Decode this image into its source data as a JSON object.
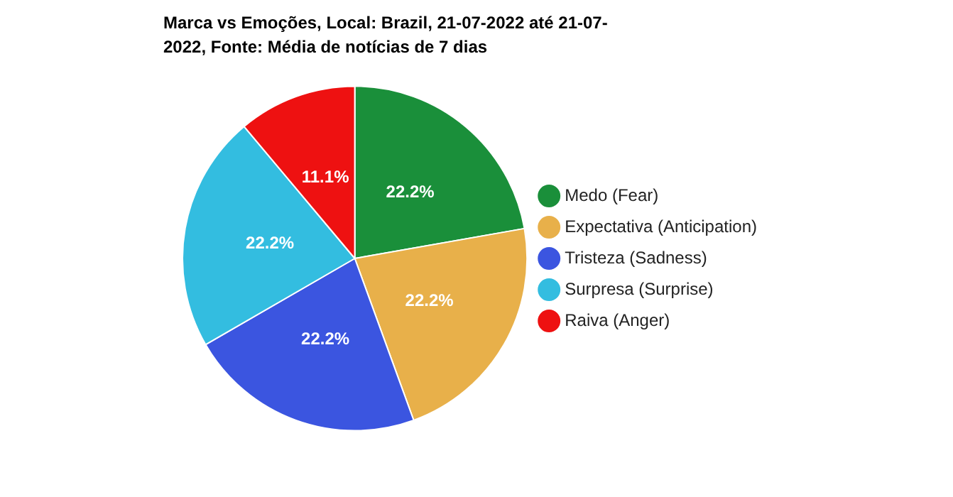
{
  "chart_data": {
    "type": "pie",
    "title": "Marca vs Emoções, Local: Brazil, 21-07-2022 até 21-07-2022, Fonte: Média de notícias de 7 dias",
    "categories": [
      "Medo (Fear)",
      "Expectativa (Anticipation)",
      "Tristeza (Sadness)",
      "Surpresa (Surprise)",
      "Raiva (Anger)"
    ],
    "values": [
      22.2,
      22.2,
      22.2,
      22.2,
      11.1
    ],
    "value_labels": [
      "22.2%",
      "22.2%",
      "22.2%",
      "22.2%",
      "11.1%"
    ],
    "colors": [
      "#1a8f3a",
      "#e8b04a",
      "#3b55e0",
      "#33bde0",
      "#ee1111"
    ],
    "legend": "right"
  }
}
